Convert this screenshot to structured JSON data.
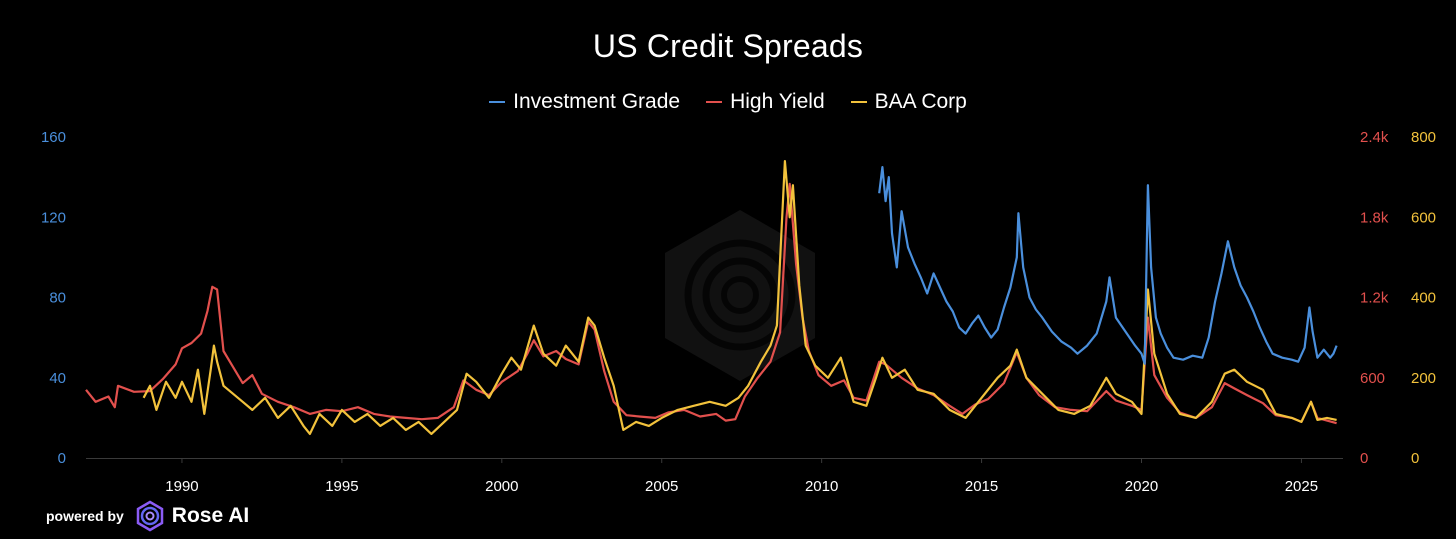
{
  "chart_data": {
    "type": "line",
    "title": "US Credit Spreads",
    "x_ticks": [
      1990,
      1995,
      2000,
      2005,
      2010,
      2015,
      2020,
      2025
    ],
    "xlim": [
      1987.0,
      2026.3
    ],
    "axes": {
      "left": {
        "ticks": [
          "0",
          "40",
          "80",
          "120",
          "160"
        ],
        "ylim": [
          0,
          160
        ],
        "color": "#4a8fdc"
      },
      "right1": {
        "ticks": [
          "0",
          "600",
          "1.2k",
          "1.8k",
          "2.4k"
        ],
        "ylim": [
          0,
          2400
        ],
        "color": "#e2504d"
      },
      "right2": {
        "ticks": [
          "0",
          "200",
          "400",
          "600",
          "800"
        ],
        "ylim": [
          0,
          800
        ],
        "color": "#f2c23c"
      }
    },
    "legend_position": "top-center",
    "grid": false,
    "series": [
      {
        "name": "Investment Grade",
        "color": "#4a8fdc",
        "axis": "left",
        "points": [
          [
            2011.8,
            132
          ],
          [
            2011.9,
            145
          ],
          [
            2012.0,
            128
          ],
          [
            2012.1,
            140
          ],
          [
            2012.2,
            112
          ],
          [
            2012.35,
            95
          ],
          [
            2012.5,
            123
          ],
          [
            2012.7,
            105
          ],
          [
            2012.9,
            97
          ],
          [
            2013.1,
            90
          ],
          [
            2013.3,
            82
          ],
          [
            2013.5,
            92
          ],
          [
            2013.7,
            85
          ],
          [
            2013.9,
            78
          ],
          [
            2014.1,
            73
          ],
          [
            2014.3,
            65
          ],
          [
            2014.5,
            62
          ],
          [
            2014.7,
            67
          ],
          [
            2014.9,
            71
          ],
          [
            2015.1,
            65
          ],
          [
            2015.3,
            60
          ],
          [
            2015.5,
            64
          ],
          [
            2015.7,
            75
          ],
          [
            2015.9,
            85
          ],
          [
            2016.1,
            100
          ],
          [
            2016.15,
            122
          ],
          [
            2016.3,
            95
          ],
          [
            2016.5,
            80
          ],
          [
            2016.7,
            74
          ],
          [
            2016.9,
            70
          ],
          [
            2017.2,
            63
          ],
          [
            2017.5,
            58
          ],
          [
            2017.8,
            55
          ],
          [
            2018.0,
            52
          ],
          [
            2018.3,
            56
          ],
          [
            2018.6,
            62
          ],
          [
            2018.9,
            78
          ],
          [
            2019.0,
            90
          ],
          [
            2019.2,
            70
          ],
          [
            2019.5,
            63
          ],
          [
            2019.8,
            56
          ],
          [
            2020.0,
            52
          ],
          [
            2020.1,
            47
          ],
          [
            2020.2,
            136
          ],
          [
            2020.3,
            95
          ],
          [
            2020.45,
            70
          ],
          [
            2020.6,
            62
          ],
          [
            2020.8,
            55
          ],
          [
            2021.0,
            50
          ],
          [
            2021.3,
            49
          ],
          [
            2021.6,
            51
          ],
          [
            2021.9,
            50
          ],
          [
            2022.1,
            60
          ],
          [
            2022.3,
            78
          ],
          [
            2022.5,
            92
          ],
          [
            2022.7,
            108
          ],
          [
            2022.9,
            95
          ],
          [
            2023.1,
            86
          ],
          [
            2023.3,
            80
          ],
          [
            2023.5,
            73
          ],
          [
            2023.7,
            65
          ],
          [
            2023.9,
            58
          ],
          [
            2024.1,
            52
          ],
          [
            2024.4,
            50
          ],
          [
            2024.7,
            49
          ],
          [
            2024.9,
            48
          ],
          [
            2025.1,
            55
          ],
          [
            2025.25,
            75
          ],
          [
            2025.35,
            63
          ],
          [
            2025.5,
            50
          ],
          [
            2025.7,
            54
          ],
          [
            2025.9,
            50
          ],
          [
            2026.0,
            52
          ],
          [
            2026.1,
            56
          ]
        ]
      },
      {
        "name": "High Yield",
        "color": "#e2504d",
        "axis": "right1",
        "points": [
          [
            1987.0,
            510
          ],
          [
            1987.3,
            420
          ],
          [
            1987.7,
            460
          ],
          [
            1987.9,
            380
          ],
          [
            1988.0,
            540
          ],
          [
            1988.5,
            495
          ],
          [
            1989.0,
            500
          ],
          [
            1989.4,
            590
          ],
          [
            1989.8,
            700
          ],
          [
            1990.0,
            820
          ],
          [
            1990.3,
            860
          ],
          [
            1990.6,
            930
          ],
          [
            1990.8,
            1100
          ],
          [
            1990.95,
            1280
          ],
          [
            1991.1,
            1260
          ],
          [
            1991.3,
            800
          ],
          [
            1991.6,
            680
          ],
          [
            1991.9,
            560
          ],
          [
            1992.2,
            620
          ],
          [
            1992.5,
            480
          ],
          [
            1993.0,
            420
          ],
          [
            1993.5,
            380
          ],
          [
            1994.0,
            330
          ],
          [
            1994.5,
            360
          ],
          [
            1995.0,
            350
          ],
          [
            1995.5,
            380
          ],
          [
            1996.0,
            330
          ],
          [
            1996.5,
            310
          ],
          [
            1997.0,
            300
          ],
          [
            1997.5,
            290
          ],
          [
            1998.0,
            300
          ],
          [
            1998.5,
            380
          ],
          [
            1998.8,
            580
          ],
          [
            1999.2,
            510
          ],
          [
            1999.6,
            470
          ],
          [
            2000.0,
            570
          ],
          [
            2000.5,
            650
          ],
          [
            2000.8,
            780
          ],
          [
            2001.0,
            880
          ],
          [
            2001.3,
            760
          ],
          [
            2001.7,
            800
          ],
          [
            2002.0,
            740
          ],
          [
            2002.4,
            700
          ],
          [
            2002.7,
            1020
          ],
          [
            2002.9,
            960
          ],
          [
            2003.2,
            650
          ],
          [
            2003.5,
            420
          ],
          [
            2003.9,
            320
          ],
          [
            2004.3,
            310
          ],
          [
            2004.8,
            300
          ],
          [
            2005.2,
            340
          ],
          [
            2005.7,
            360
          ],
          [
            2006.2,
            310
          ],
          [
            2006.7,
            330
          ],
          [
            2007.0,
            280
          ],
          [
            2007.3,
            290
          ],
          [
            2007.6,
            460
          ],
          [
            2008.0,
            600
          ],
          [
            2008.4,
            720
          ],
          [
            2008.7,
            940
          ],
          [
            2008.9,
            1800
          ],
          [
            2009.0,
            2050
          ],
          [
            2009.2,
            1450
          ],
          [
            2009.4,
            1050
          ],
          [
            2009.6,
            800
          ],
          [
            2009.9,
            620
          ],
          [
            2010.3,
            540
          ],
          [
            2010.7,
            580
          ],
          [
            2011.0,
            450
          ],
          [
            2011.4,
            430
          ],
          [
            2011.8,
            720
          ],
          [
            2012.0,
            700
          ],
          [
            2012.5,
            600
          ],
          [
            2013.0,
            520
          ],
          [
            2013.5,
            470
          ],
          [
            2014.0,
            390
          ],
          [
            2014.4,
            330
          ],
          [
            2014.8,
            400
          ],
          [
            2015.2,
            440
          ],
          [
            2015.7,
            560
          ],
          [
            2016.1,
            790
          ],
          [
            2016.4,
            600
          ],
          [
            2016.8,
            470
          ],
          [
            2017.3,
            380
          ],
          [
            2017.8,
            360
          ],
          [
            2018.3,
            350
          ],
          [
            2018.9,
            500
          ],
          [
            2019.2,
            430
          ],
          [
            2019.7,
            390
          ],
          [
            2020.0,
            360
          ],
          [
            2020.2,
            1050
          ],
          [
            2020.4,
            620
          ],
          [
            2020.8,
            450
          ],
          [
            2021.2,
            340
          ],
          [
            2021.7,
            300
          ],
          [
            2022.2,
            380
          ],
          [
            2022.6,
            560
          ],
          [
            2022.9,
            520
          ],
          [
            2023.3,
            470
          ],
          [
            2023.8,
            410
          ],
          [
            2024.2,
            320
          ],
          [
            2024.7,
            300
          ],
          [
            2025.0,
            270
          ],
          [
            2025.3,
            420
          ],
          [
            2025.5,
            300
          ],
          [
            2025.8,
            280
          ],
          [
            2026.1,
            260
          ]
        ]
      },
      {
        "name": "BAA Corp",
        "color": "#f2c23c",
        "axis": "right2",
        "points": [
          [
            1988.8,
            150
          ],
          [
            1989.0,
            180
          ],
          [
            1989.2,
            120
          ],
          [
            1989.5,
            190
          ],
          [
            1989.8,
            150
          ],
          [
            1990.0,
            190
          ],
          [
            1990.3,
            140
          ],
          [
            1990.5,
            220
          ],
          [
            1990.7,
            110
          ],
          [
            1990.9,
            220
          ],
          [
            1991.0,
            280
          ],
          [
            1991.1,
            240
          ],
          [
            1991.3,
            180
          ],
          [
            1991.6,
            160
          ],
          [
            1991.9,
            140
          ],
          [
            1992.2,
            120
          ],
          [
            1992.6,
            150
          ],
          [
            1993.0,
            100
          ],
          [
            1993.4,
            130
          ],
          [
            1993.8,
            80
          ],
          [
            1994.0,
            60
          ],
          [
            1994.3,
            110
          ],
          [
            1994.7,
            80
          ],
          [
            1995.0,
            120
          ],
          [
            1995.4,
            90
          ],
          [
            1995.8,
            110
          ],
          [
            1996.2,
            80
          ],
          [
            1996.6,
            100
          ],
          [
            1997.0,
            70
          ],
          [
            1997.4,
            90
          ],
          [
            1997.8,
            60
          ],
          [
            1998.2,
            90
          ],
          [
            1998.6,
            120
          ],
          [
            1998.9,
            210
          ],
          [
            1999.2,
            190
          ],
          [
            1999.6,
            150
          ],
          [
            2000.0,
            210
          ],
          [
            2000.3,
            250
          ],
          [
            2000.6,
            220
          ],
          [
            2001.0,
            330
          ],
          [
            2001.3,
            260
          ],
          [
            2001.7,
            230
          ],
          [
            2002.0,
            280
          ],
          [
            2002.4,
            240
          ],
          [
            2002.7,
            350
          ],
          [
            2002.9,
            330
          ],
          [
            2003.2,
            250
          ],
          [
            2003.5,
            180
          ],
          [
            2003.8,
            70
          ],
          [
            2004.2,
            90
          ],
          [
            2004.6,
            80
          ],
          [
            2005.0,
            100
          ],
          [
            2005.5,
            120
          ],
          [
            2006.0,
            130
          ],
          [
            2006.5,
            140
          ],
          [
            2007.0,
            130
          ],
          [
            2007.4,
            150
          ],
          [
            2007.7,
            180
          ],
          [
            2008.1,
            240
          ],
          [
            2008.4,
            280
          ],
          [
            2008.6,
            330
          ],
          [
            2008.85,
            740
          ],
          [
            2009.0,
            600
          ],
          [
            2009.1,
            680
          ],
          [
            2009.3,
            430
          ],
          [
            2009.5,
            280
          ],
          [
            2009.8,
            230
          ],
          [
            2010.2,
            200
          ],
          [
            2010.6,
            250
          ],
          [
            2011.0,
            140
          ],
          [
            2011.4,
            130
          ],
          [
            2011.7,
            200
          ],
          [
            2011.9,
            250
          ],
          [
            2012.2,
            200
          ],
          [
            2012.6,
            220
          ],
          [
            2013.0,
            170
          ],
          [
            2013.5,
            160
          ],
          [
            2014.0,
            120
          ],
          [
            2014.5,
            100
          ],
          [
            2015.0,
            150
          ],
          [
            2015.5,
            200
          ],
          [
            2015.9,
            230
          ],
          [
            2016.1,
            270
          ],
          [
            2016.4,
            200
          ],
          [
            2016.9,
            160
          ],
          [
            2017.4,
            120
          ],
          [
            2017.9,
            110
          ],
          [
            2018.4,
            130
          ],
          [
            2018.9,
            200
          ],
          [
            2019.2,
            160
          ],
          [
            2019.7,
            140
          ],
          [
            2020.0,
            110
          ],
          [
            2020.2,
            420
          ],
          [
            2020.4,
            260
          ],
          [
            2020.8,
            160
          ],
          [
            2021.2,
            110
          ],
          [
            2021.7,
            100
          ],
          [
            2022.2,
            140
          ],
          [
            2022.6,
            210
          ],
          [
            2022.9,
            220
          ],
          [
            2023.3,
            190
          ],
          [
            2023.8,
            170
          ],
          [
            2024.2,
            110
          ],
          [
            2024.7,
            100
          ],
          [
            2025.0,
            90
          ],
          [
            2025.3,
            140
          ],
          [
            2025.5,
            95
          ],
          [
            2025.8,
            100
          ],
          [
            2026.1,
            95
          ]
        ]
      }
    ]
  },
  "footer": {
    "powered_by": "powered by",
    "brand": "Rose AI"
  }
}
